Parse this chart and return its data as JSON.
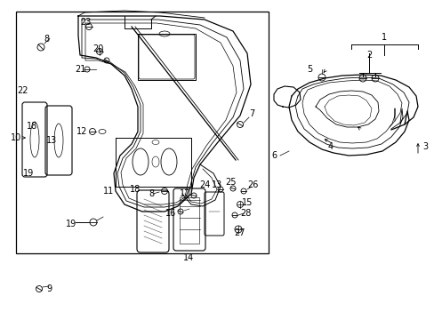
{
  "bg_color": "#ffffff",
  "line_color": "#000000",
  "fig_width": 4.89,
  "fig_height": 3.6,
  "dpi": 100,
  "font_size_labels": 7.0
}
